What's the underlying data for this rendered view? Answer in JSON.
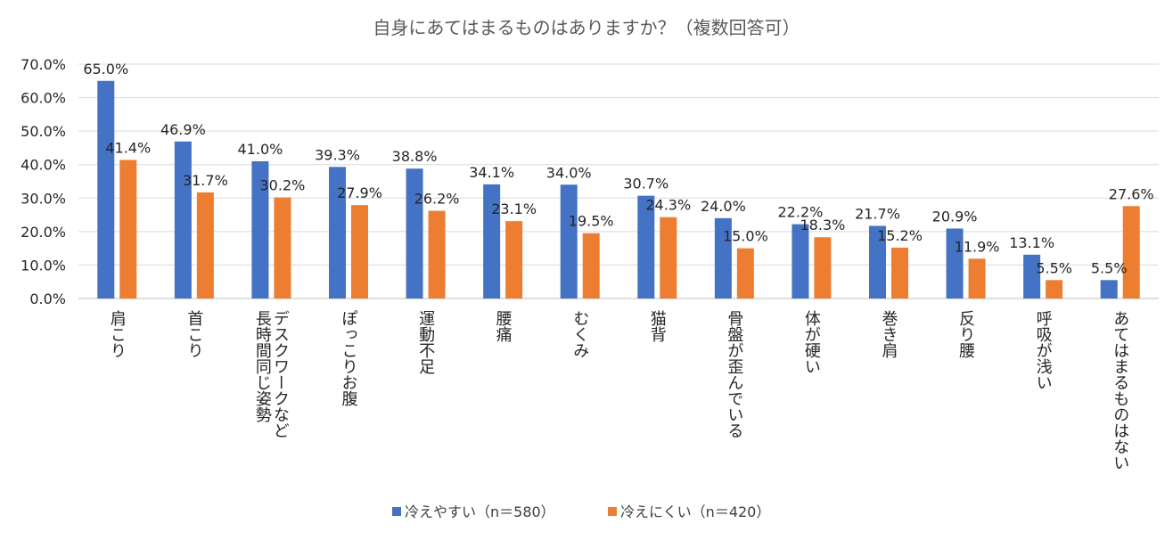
{
  "chart_data": {
    "type": "bar",
    "title": "自身にあてはまるものはありますか？（複数回答可）",
    "xlabel": "",
    "ylabel": "",
    "ylim": [
      0,
      70
    ],
    "yticks": [
      0,
      10,
      20,
      30,
      40,
      50,
      60,
      70
    ],
    "ytick_labels": [
      "0.0%",
      "10.0%",
      "20.0%",
      "30.0%",
      "40.0%",
      "50.0%",
      "60.0%",
      "70.0%"
    ],
    "grid": true,
    "legend_position": "bottom",
    "categories": [
      "肩こり",
      "首こり",
      "デスクワークなど\n長時間同じ姿勢",
      "ぽっこりお腹",
      "運動不足",
      "腰痛",
      "むくみ",
      "猫背",
      "骨盤が歪んでいる",
      "体が硬い",
      "巻き肩",
      "反り腰",
      "呼吸が浅い",
      "あてはまるものはない"
    ],
    "series": [
      {
        "name": "冷えやすい（n＝580）",
        "color": "#4472C4",
        "values": [
          65.0,
          46.9,
          41.0,
          39.3,
          38.8,
          34.1,
          34.0,
          30.7,
          24.0,
          22.2,
          21.7,
          20.9,
          13.1,
          5.5
        ],
        "labels": [
          "65.0%",
          "46.9%",
          "41.0%",
          "39.3%",
          "38.8%",
          "34.1%",
          "34.0%",
          "30.7%",
          "24.0%",
          "22.2%",
          "21.7%",
          "20.9%",
          "13.1%",
          "5.5%"
        ]
      },
      {
        "name": "冷えにくい（n＝420）",
        "color": "#ED7D31",
        "values": [
          41.4,
          31.7,
          30.2,
          27.9,
          26.2,
          23.1,
          19.5,
          24.3,
          15.0,
          18.3,
          15.2,
          11.9,
          5.5,
          27.6
        ],
        "labels": [
          "41.4%",
          "31.7%",
          "30.2%",
          "27.9%",
          "26.2%",
          "23.1%",
          "19.5%",
          "24.3%",
          "15.0%",
          "18.3%",
          "15.2%",
          "11.9%",
          "5.5%",
          "27.6%"
        ]
      }
    ]
  }
}
